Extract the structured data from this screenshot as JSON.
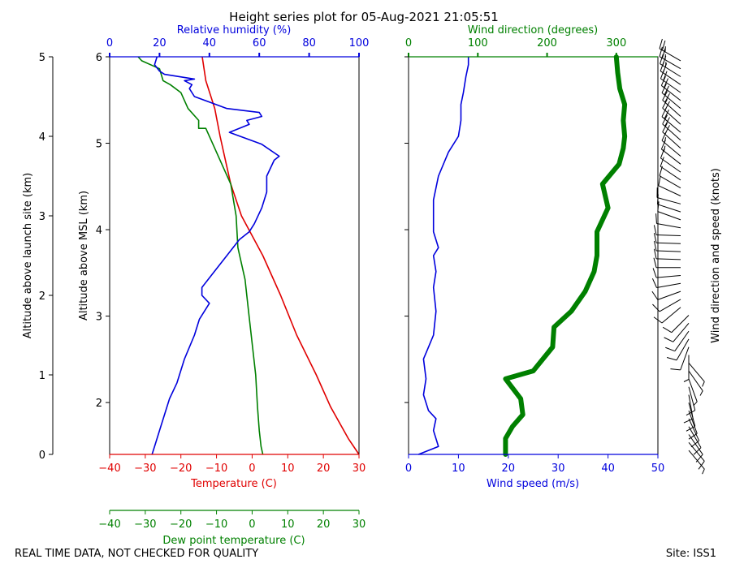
{
  "title": "Height series plot for 05-Aug-2021 21:05:51",
  "footer": {
    "left": "REAL TIME DATA, NOT CHECKED FOR QUALITY",
    "right": "Site: ISS1"
  },
  "colors": {
    "red": "#e00000",
    "green": "#008000",
    "blue": "#0000dd",
    "black": "#000000"
  },
  "chart_data": [
    {
      "type": "line",
      "name": "thermo-panel",
      "axes": {
        "outer_left": {
          "label": "Altitude above launch site (km)",
          "range": [
            0,
            5
          ],
          "ticks": [
            0,
            1,
            2,
            3,
            4,
            5
          ]
        },
        "inner_left": {
          "label": "Altitude above MSL (km)",
          "range": [
            1.4,
            6.0
          ],
          "ticks": [
            2,
            3,
            4,
            5,
            6
          ]
        },
        "bottom": {
          "label": "Temperature (C)",
          "range": [
            -40,
            30
          ],
          "ticks": [
            -40,
            -30,
            -20,
            -10,
            0,
            10,
            20,
            30
          ]
        },
        "dewpoint": {
          "label": "Dew point temperature (C)",
          "range": [
            -40,
            30
          ],
          "ticks": [
            -40,
            -30,
            -20,
            -10,
            0,
            10,
            20,
            30
          ]
        },
        "top": {
          "label": "Relative humidity (%)",
          "range": [
            0,
            100
          ],
          "ticks": [
            0,
            20,
            40,
            60,
            80,
            100
          ]
        }
      },
      "series": [
        {
          "name": "Temperature",
          "unit": "C",
          "color": "#e00000",
          "points": [
            [
              30,
              0
            ],
            [
              27,
              0.2
            ],
            [
              22,
              0.6
            ],
            [
              18,
              1.0
            ],
            [
              12.5,
              1.5
            ],
            [
              8,
              2.0
            ],
            [
              3,
              2.5
            ],
            [
              -3,
              3.0
            ],
            [
              -6,
              3.4
            ],
            [
              -8,
              3.8
            ],
            [
              -9,
              4.0
            ],
            [
              -10.5,
              4.35
            ],
            [
              -13,
              4.7
            ],
            [
              -14,
              5.0
            ]
          ]
        },
        {
          "name": "Dew point",
          "unit": "C",
          "color": "#008000",
          "points": [
            [
              3,
              0
            ],
            [
              2.5,
              0.1
            ],
            [
              2,
              0.3
            ],
            [
              1.5,
              0.6
            ],
            [
              1,
              1.0
            ],
            [
              0,
              1.4
            ],
            [
              -1,
              1.8
            ],
            [
              -2,
              2.2
            ],
            [
              -4,
              2.6
            ],
            [
              -4.5,
              3.0
            ],
            [
              -6,
              3.4
            ],
            [
              -8,
              3.6
            ],
            [
              -11,
              3.9
            ],
            [
              -13,
              4.1
            ],
            [
              -15,
              4.1
            ],
            [
              -15,
              4.2
            ],
            [
              -18,
              4.35
            ],
            [
              -20,
              4.55
            ],
            [
              -23,
              4.65
            ],
            [
              -25,
              4.7
            ],
            [
              -26,
              4.85
            ],
            [
              -31,
              4.95
            ],
            [
              -32,
              5.0
            ]
          ]
        },
        {
          "name": "Relative humidity",
          "unit": "%",
          "color": "#0000dd",
          "points": [
            [
              17,
              0
            ],
            [
              18,
              0.1
            ],
            [
              20,
              0.3
            ],
            [
              24,
              0.7
            ],
            [
              27,
              0.9
            ],
            [
              30,
              1.2
            ],
            [
              34,
              1.5
            ],
            [
              36,
              1.7
            ],
            [
              40,
              1.9
            ],
            [
              37,
              2.0
            ],
            [
              37,
              2.1
            ],
            [
              42,
              2.3
            ],
            [
              47,
              2.5
            ],
            [
              52,
              2.7
            ],
            [
              56,
              2.8
            ],
            [
              58,
              2.9
            ],
            [
              61,
              3.1
            ],
            [
              63,
              3.3
            ],
            [
              63,
              3.5
            ],
            [
              66,
              3.7
            ],
            [
              68,
              3.75
            ],
            [
              61,
              3.9
            ],
            [
              48,
              4.05
            ],
            [
              56,
              4.15
            ],
            [
              55,
              4.2
            ],
            [
              61,
              4.25
            ],
            [
              60,
              4.3
            ],
            [
              47,
              4.35
            ],
            [
              34,
              4.5
            ],
            [
              32,
              4.6
            ],
            [
              33,
              4.65
            ],
            [
              30,
              4.7
            ],
            [
              34,
              4.72
            ],
            [
              22,
              4.78
            ],
            [
              20,
              4.82
            ],
            [
              18,
              4.9
            ],
            [
              19,
              5.0
            ]
          ]
        }
      ]
    },
    {
      "type": "line",
      "name": "wind-panel",
      "axes": {
        "bottom": {
          "label": "Wind speed (m/s)",
          "range": [
            0,
            50
          ],
          "ticks": [
            0,
            10,
            20,
            30,
            40,
            50
          ]
        },
        "top": {
          "label": "Wind direction (degrees)",
          "range": [
            0,
            360
          ],
          "ticks": [
            0,
            100,
            200,
            300
          ]
        },
        "right": {
          "label": "Wind direction and speed (knots)"
        }
      },
      "series": [
        {
          "name": "Wind speed",
          "unit": "m/s",
          "color": "#0000dd",
          "points": [
            [
              2,
              0
            ],
            [
              6,
              0.1
            ],
            [
              5,
              0.3
            ],
            [
              5.5,
              0.45
            ],
            [
              4,
              0.55
            ],
            [
              3,
              0.75
            ],
            [
              3.5,
              0.95
            ],
            [
              3,
              1.2
            ],
            [
              4,
              1.35
            ],
            [
              5,
              1.5
            ],
            [
              5.5,
              1.8
            ],
            [
              5,
              2.1
            ],
            [
              5.5,
              2.3
            ],
            [
              5,
              2.5
            ],
            [
              6,
              2.6
            ],
            [
              5,
              2.8
            ],
            [
              5,
              3.0
            ],
            [
              5,
              3.2
            ],
            [
              6,
              3.5
            ],
            [
              8,
              3.8
            ],
            [
              10,
              4.0
            ],
            [
              10.5,
              4.2
            ],
            [
              10.5,
              4.4
            ],
            [
              11,
              4.55
            ],
            [
              11.5,
              4.75
            ],
            [
              12,
              4.9
            ],
            [
              12,
              5.0
            ]
          ]
        },
        {
          "name": "Wind direction",
          "unit": "degrees",
          "color": "#008000",
          "points": [
            [
              140,
              0
            ],
            [
              140,
              0.2
            ],
            [
              150,
              0.35
            ],
            [
              165,
              0.5
            ],
            [
              162,
              0.7
            ],
            [
              140,
              0.95
            ],
            [
              180,
              1.05
            ],
            [
              208,
              1.35
            ],
            [
              210,
              1.6
            ],
            [
              235,
              1.8
            ],
            [
              255,
              2.05
            ],
            [
              268,
              2.3
            ],
            [
              272,
              2.5
            ],
            [
              272,
              2.8
            ],
            [
              288,
              3.1
            ],
            [
              280,
              3.4
            ],
            [
              304,
              3.65
            ],
            [
              310,
              3.85
            ],
            [
              312,
              4.0
            ],
            [
              310,
              4.2
            ],
            [
              312,
              4.4
            ],
            [
              305,
              4.6
            ],
            [
              302,
              4.8
            ],
            [
              300,
              5.0
            ]
          ]
        }
      ],
      "barbs": {
        "levels": [
          0.05,
          0.15,
          0.25,
          0.35,
          0.45,
          0.55,
          0.65,
          0.75,
          0.85,
          0.95,
          1.05,
          1.15,
          1.25,
          1.35,
          1.45,
          1.55,
          1.65,
          1.75,
          1.85,
          1.95,
          2.05,
          2.15,
          2.25,
          2.35,
          2.45,
          2.55,
          2.65,
          2.75,
          2.85,
          2.95,
          3.05,
          3.15,
          3.25,
          3.35,
          3.45,
          3.55,
          3.65,
          3.75,
          3.85,
          3.95,
          4.05,
          4.15,
          4.25,
          4.35,
          4.45,
          4.55,
          4.65,
          4.75,
          4.85,
          4.95
        ],
        "directions": [
          140,
          140,
          145,
          150,
          155,
          160,
          165,
          170,
          165,
          160,
          145,
          140,
          180,
          200,
          210,
          215,
          220,
          225,
          230,
          240,
          250,
          260,
          265,
          270,
          272,
          272,
          272,
          272,
          280,
          290,
          288,
          285,
          295,
          300,
          304,
          305,
          308,
          310,
          312,
          312,
          310,
          312,
          312,
          310,
          308,
          305,
          304,
          302,
          300,
          300
        ],
        "speeds_knots": [
          4,
          8,
          10,
          11,
          10,
          11,
          10,
          9,
          8,
          7,
          6,
          6,
          7,
          8,
          8,
          9,
          9,
          10,
          10,
          10,
          11,
          10,
          11,
          10,
          11,
          11,
          10,
          11,
          10,
          11,
          11,
          10,
          11,
          11,
          11,
          12,
          14,
          16,
          18,
          19,
          20,
          20,
          21,
          21,
          22,
          22,
          22,
          23,
          23,
          24
        ]
      }
    }
  ]
}
